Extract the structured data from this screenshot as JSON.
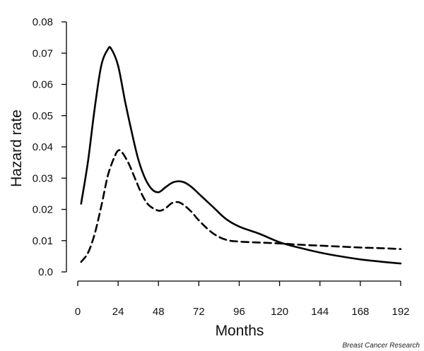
{
  "chart_data": {
    "type": "line",
    "title": "",
    "xlabel": "Months",
    "ylabel": "Hazard rate",
    "xlim": [
      0,
      192
    ],
    "ylim": [
      0,
      0.08
    ],
    "x_ticks": [
      "0",
      "24",
      "48",
      "72",
      "96",
      "120",
      "144",
      "168",
      "192"
    ],
    "y_ticks": [
      "0.0",
      "0.01",
      "0.02",
      "0.03",
      "0.04",
      "0.05",
      "0.06",
      "0.07",
      "0.08"
    ],
    "grid": false,
    "legend": "none",
    "series": [
      {
        "style": "solid",
        "points": [
          [
            2,
            0.0218
          ],
          [
            6,
            0.035
          ],
          [
            10,
            0.052
          ],
          [
            14,
            0.066
          ],
          [
            18,
            0.0713
          ],
          [
            20,
            0.0713
          ],
          [
            24,
            0.066
          ],
          [
            28,
            0.055
          ],
          [
            32,
            0.045
          ],
          [
            36,
            0.036
          ],
          [
            40,
            0.03
          ],
          [
            44,
            0.0265
          ],
          [
            48,
            0.0255
          ],
          [
            52,
            0.027
          ],
          [
            56,
            0.0285
          ],
          [
            60,
            0.029
          ],
          [
            64,
            0.0285
          ],
          [
            68,
            0.027
          ],
          [
            72,
            0.025
          ],
          [
            80,
            0.021
          ],
          [
            88,
            0.017
          ],
          [
            96,
            0.0145
          ],
          [
            108,
            0.0122
          ],
          [
            120,
            0.0095
          ],
          [
            132,
            0.0077
          ],
          [
            144,
            0.0062
          ],
          [
            156,
            0.005
          ],
          [
            168,
            0.004
          ],
          [
            180,
            0.0033
          ],
          [
            192,
            0.0027
          ]
        ]
      },
      {
        "style": "dashed",
        "points": [
          [
            2,
            0.0032
          ],
          [
            6,
            0.006
          ],
          [
            10,
            0.012
          ],
          [
            14,
            0.021
          ],
          [
            18,
            0.031
          ],
          [
            22,
            0.037
          ],
          [
            24,
            0.0388
          ],
          [
            26,
            0.0385
          ],
          [
            30,
            0.035
          ],
          [
            34,
            0.03
          ],
          [
            38,
            0.025
          ],
          [
            42,
            0.0215
          ],
          [
            48,
            0.0196
          ],
          [
            52,
            0.0203
          ],
          [
            56,
            0.022
          ],
          [
            60,
            0.0223
          ],
          [
            64,
            0.021
          ],
          [
            68,
            0.019
          ],
          [
            72,
            0.0165
          ],
          [
            80,
            0.0125
          ],
          [
            88,
            0.0103
          ],
          [
            96,
            0.0097
          ],
          [
            108,
            0.0094
          ],
          [
            120,
            0.0091
          ],
          [
            132,
            0.0087
          ],
          [
            144,
            0.0084
          ],
          [
            156,
            0.0081
          ],
          [
            168,
            0.0078
          ],
          [
            180,
            0.0076
          ],
          [
            192,
            0.0073
          ]
        ]
      }
    ]
  },
  "credit": "Breast Cancer Research"
}
